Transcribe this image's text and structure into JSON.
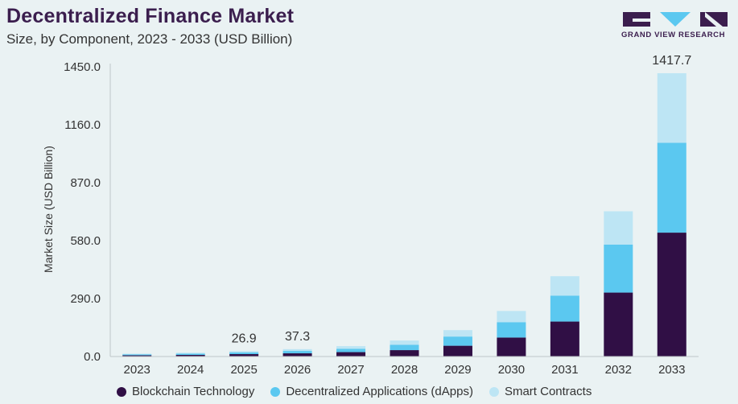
{
  "header": {
    "title": "Decentralized Finance Market",
    "subtitle": "Size, by Component, 2023 - 2033 (USD Billion)"
  },
  "brand": {
    "name": "GRAND VIEW RESEARCH",
    "color": "#3b1e4e",
    "accent": "#5bc8f0"
  },
  "chart_data": {
    "type": "bar",
    "stacked": true,
    "categories": [
      "2023",
      "2024",
      "2025",
      "2026",
      "2027",
      "2028",
      "2029",
      "2030",
      "2031",
      "2032",
      "2033"
    ],
    "series": [
      {
        "name": "Blockchain Technology",
        "color": "#300f45",
        "values": [
          6,
          8,
          12,
          16,
          22,
          32,
          54,
          95,
          175,
          320,
          620
        ]
      },
      {
        "name": "Decentralized Applications (dApps)",
        "color": "#5bc8f0",
        "values": [
          5,
          6,
          9,
          12,
          17,
          27,
          46,
          77,
          130,
          240,
          450
        ]
      },
      {
        "name": "Smart Contracts",
        "color": "#bde5f4",
        "values": [
          3,
          5,
          6,
          9,
          13,
          21,
          32,
          56,
          97,
          167,
          348
        ]
      }
    ],
    "data_labels": [
      {
        "category": "2025",
        "label": "26.9"
      },
      {
        "category": "2026",
        "label": "37.3"
      },
      {
        "category": "2033",
        "label": "1417.7"
      }
    ],
    "yticks": [
      "0.0",
      "290.0",
      "580.0",
      "870.0",
      "1160.0",
      "1450.0"
    ],
    "ylim": [
      0,
      1450
    ],
    "ylabel": "Market Size (USD Billion)",
    "xlabel": "",
    "grid": false,
    "legend_position": "bottom"
  }
}
